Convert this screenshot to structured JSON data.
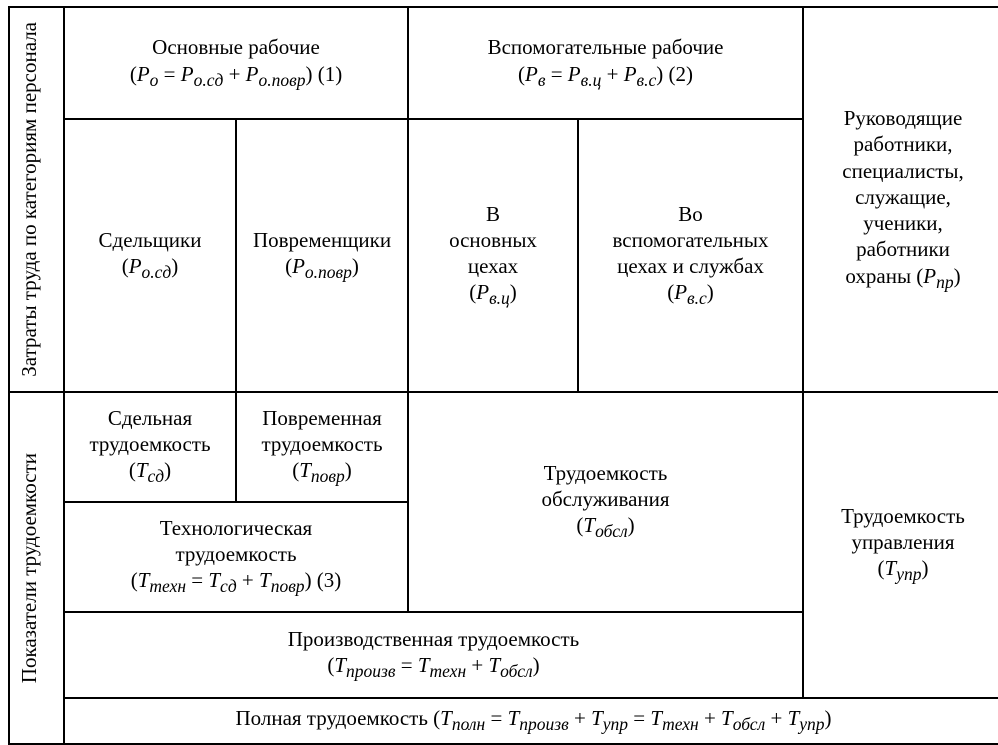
{
  "table": {
    "columns": [
      55,
      172,
      172,
      170,
      225,
      200
    ],
    "border_color": "#000000",
    "background": "#ffffff",
    "font_family": "Times New Roman",
    "font_size_pt": 16,
    "text_color": "#000000"
  },
  "rowHeaders": {
    "top": "Затраты труда по категориям персонала",
    "bottom": "Показатели трудоемкости"
  },
  "r1": {
    "main_workers": {
      "title": "Основные рабочие",
      "formula_html": "(<i>P<sub>о</sub></i> = <i>P<sub>о.сд</sub></i> + <i>P<sub>о.повр</sub></i>) (1)"
    },
    "aux_workers": {
      "title": "Вспомогательные рабочие",
      "formula_html": "(<i>P<sub>в</sub></i> = <i>P<sub>в.ц</sub></i> + <i>P<sub>в.с</sub></i>) (2)"
    },
    "managers_html": "Руководящие<br>работники,<br>специалисты,<br>служащие,<br>ученики,<br>работники<br>охраны (<i>P<sub>пр</sub></i>)",
    "piece_workers_html": "Сдельщики<br>(<i>P<sub>о.сд</sub></i>)",
    "time_workers_html": "Повременщики<br>(<i>P<sub>о.повр</sub></i>)",
    "main_shops_html": "В<br>основных<br>цехах<br>(<i>P<sub>в.ц</sub></i>)",
    "aux_shops_html": "Во<br>вспомогательных<br>цехах и службах<br>(<i>P<sub>в.с</sub></i>)"
  },
  "r2": {
    "piece_labor_html": "Сдельная<br>трудоемкость<br>(<i>T<sub>сд</sub></i>)",
    "time_labor_html": "Повременная<br>трудоемкость<br>(<i>T<sub>повр</sub></i>)",
    "service_labor_html": "Трудоемкость<br>обслуживания<br>(<i>T<sub>обсл</sub></i>)",
    "mgmt_labor_html": "Трудоемкость<br>управления<br>(<i>T<sub>упр</sub></i>)",
    "tech_labor_html": "Технологическая<br>трудоемкость<br>(<i>T<sub>техн</sub></i> = <i>T<sub>сд</sub></i> + <i>T<sub>повр</sub></i>) (3)",
    "prod_labor_html": "Производственная трудоемкость<br>(<i>T<sub>произв</sub></i> = <i>T<sub>техн</sub></i> + <i>T<sub>обсл</sub></i>)",
    "full_labor_html": "Полная трудоемкость (<i>T<sub>полн</sub></i> = <i>T<sub>произв</sub></i> + <i>T<sub>упр</sub></i> = <i>T<sub>техн</sub></i> + <i>T<sub>обсл</sub></i> + <i>T<sub>упр</sub></i>)"
  }
}
